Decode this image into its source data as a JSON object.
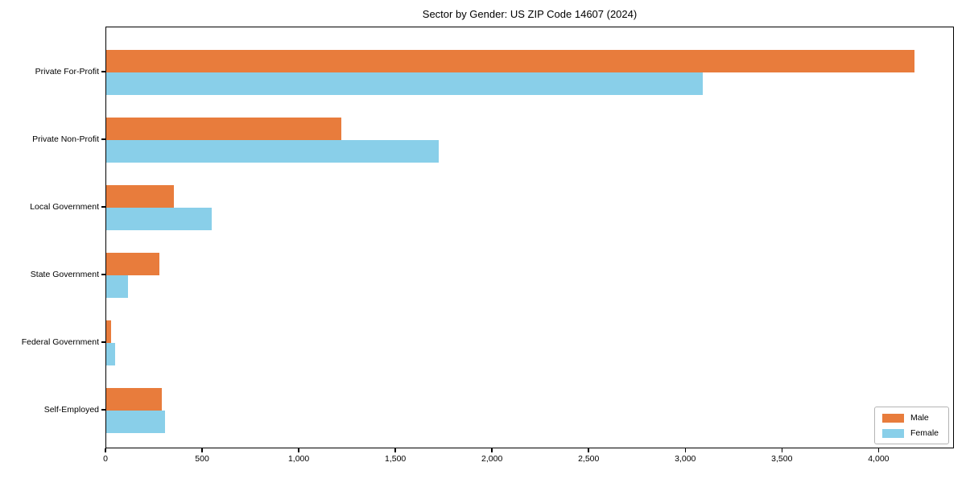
{
  "title": "Sector by Gender: US ZIP Code 14607 (2024)",
  "chart_data": {
    "type": "bar",
    "orientation": "horizontal",
    "title": "Sector by Gender: US ZIP Code 14607 (2024)",
    "categories": [
      "Private For-Profit",
      "Private Non-Profit",
      "Local Government",
      "State Government",
      "Federal Government",
      "Self-Employed"
    ],
    "series": [
      {
        "name": "Male",
        "color": "#e87c3c",
        "values": [
          4180,
          1218,
          351,
          275,
          25,
          287
        ]
      },
      {
        "name": "Female",
        "color": "#89cfe9",
        "values": [
          3087,
          1719,
          547,
          114,
          46,
          305
        ]
      }
    ],
    "x_ticks": [
      0,
      500,
      1000,
      1500,
      2000,
      2500,
      3000,
      3500,
      4000
    ],
    "x_tick_labels": [
      "0",
      "500",
      "1,000",
      "1,500",
      "2,000",
      "2,500",
      "3,000",
      "3,500",
      "4,000"
    ],
    "xlim": [
      0,
      4390
    ],
    "xlabel": "",
    "ylabel": "",
    "grid": false,
    "legend": {
      "position": "lower right",
      "entries": [
        "Male",
        "Female"
      ]
    }
  }
}
